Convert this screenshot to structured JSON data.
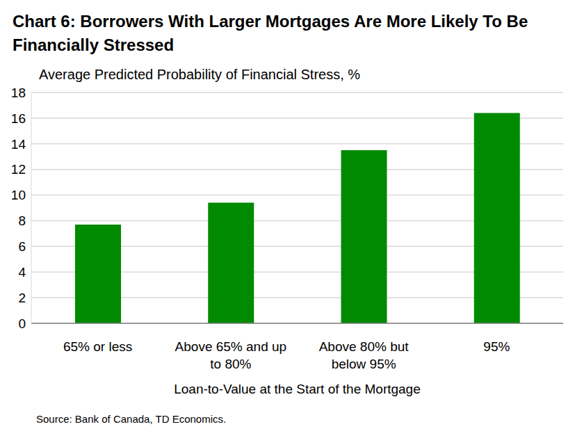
{
  "chart_data": {
    "type": "bar",
    "title": "Chart 6: Borrowers With Larger Mortgages Are More Likely To Be Financially Stressed",
    "subtitle": "Average Predicted Probability of Financial Stress, %",
    "x_label": "Loan-to-Value at the Start of the Mortgage",
    "source": "Source: Bank of Canada, TD Economics.",
    "categories": [
      "65% or less",
      "Above 65% and up to 80%",
      "Above 80% but below 95%",
      "95%"
    ],
    "values": [
      7.7,
      9.4,
      13.5,
      16.4
    ],
    "color": "#008a00",
    "ylim": [
      0,
      18
    ],
    "yticks": [
      0,
      2,
      4,
      6,
      8,
      10,
      12,
      14,
      16,
      18
    ],
    "grid": true
  }
}
